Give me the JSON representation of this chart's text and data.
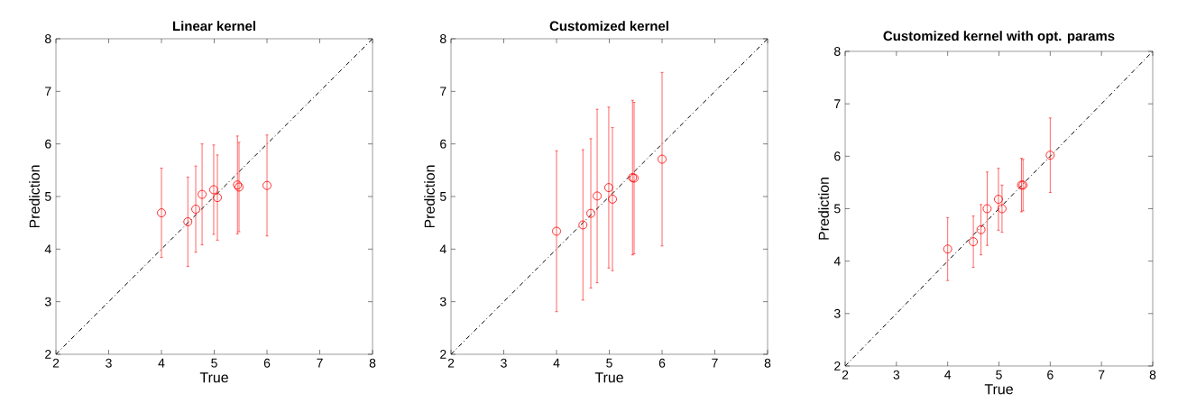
{
  "chart_data": [
    {
      "type": "scatter",
      "title": "Linear kernel",
      "xlabel": "True",
      "ylabel": "Prediction",
      "xlim": [
        2,
        8
      ],
      "ylim": [
        2,
        8
      ],
      "xticks": [
        2,
        3,
        4,
        5,
        6,
        7,
        8
      ],
      "yticks": [
        2,
        3,
        4,
        5,
        6,
        7,
        8
      ],
      "series": [
        {
          "type": "line",
          "x": [
            2,
            8
          ],
          "values": [
            2,
            8
          ],
          "color": "#000000",
          "line_style": "dashdot",
          "marker": "none"
        },
        {
          "type": "scatter",
          "x": [
            4.0,
            4.5,
            4.65,
            4.77,
            4.99,
            5.06,
            5.44,
            5.47,
            6.0
          ],
          "values": [
            4.69,
            4.52,
            4.76,
            5.04,
            5.13,
            4.98,
            5.22,
            5.18,
            5.21
          ],
          "errors": [
            0.85,
            0.85,
            0.82,
            0.96,
            0.85,
            0.81,
            0.93,
            0.85,
            0.96
          ],
          "color": "#ff0000",
          "marker": "circle"
        }
      ]
    },
    {
      "type": "scatter",
      "title": "Customized kernel",
      "xlabel": "True",
      "ylabel": "Prediction",
      "xlim": [
        2,
        8
      ],
      "ylim": [
        2,
        8
      ],
      "xticks": [
        2,
        3,
        4,
        5,
        6,
        7,
        8
      ],
      "yticks": [
        2,
        3,
        4,
        5,
        6,
        7,
        8
      ],
      "series": [
        {
          "type": "line",
          "x": [
            2,
            8
          ],
          "values": [
            2,
            8
          ],
          "color": "#000000",
          "line_style": "dashdot",
          "marker": "none"
        },
        {
          "type": "scatter",
          "x": [
            4.0,
            4.5,
            4.65,
            4.77,
            4.99,
            5.06,
            5.44,
            5.47,
            6.0
          ],
          "values": [
            4.34,
            4.46,
            4.68,
            5.01,
            5.17,
            4.95,
            5.36,
            5.35,
            5.71
          ],
          "errors": [
            1.53,
            1.43,
            1.42,
            1.65,
            1.53,
            1.36,
            1.47,
            1.44,
            1.65
          ],
          "color": "#ff0000",
          "marker": "circle"
        }
      ]
    },
    {
      "type": "scatter",
      "title": "Customized kernel with opt. params",
      "xlabel": "True",
      "ylabel": "Prediction",
      "xlim": [
        2,
        8
      ],
      "ylim": [
        2,
        8
      ],
      "xticks": [
        2,
        3,
        4,
        5,
        6,
        7,
        8
      ],
      "yticks": [
        2,
        3,
        4,
        5,
        6,
        7,
        8
      ],
      "series": [
        {
          "type": "line",
          "x": [
            2,
            8
          ],
          "values": [
            2,
            8
          ],
          "color": "#000000",
          "line_style": "dashdot",
          "marker": "none"
        },
        {
          "type": "scatter",
          "x": [
            4.0,
            4.5,
            4.65,
            4.77,
            4.99,
            5.06,
            5.44,
            5.47,
            6.0
          ],
          "values": [
            4.23,
            4.37,
            4.6,
            5.0,
            5.18,
            5.0,
            5.45,
            5.45,
            6.02
          ],
          "errors": [
            0.6,
            0.49,
            0.48,
            0.7,
            0.59,
            0.45,
            0.51,
            0.49,
            0.71
          ],
          "color": "#ff0000",
          "marker": "circle"
        }
      ]
    }
  ]
}
